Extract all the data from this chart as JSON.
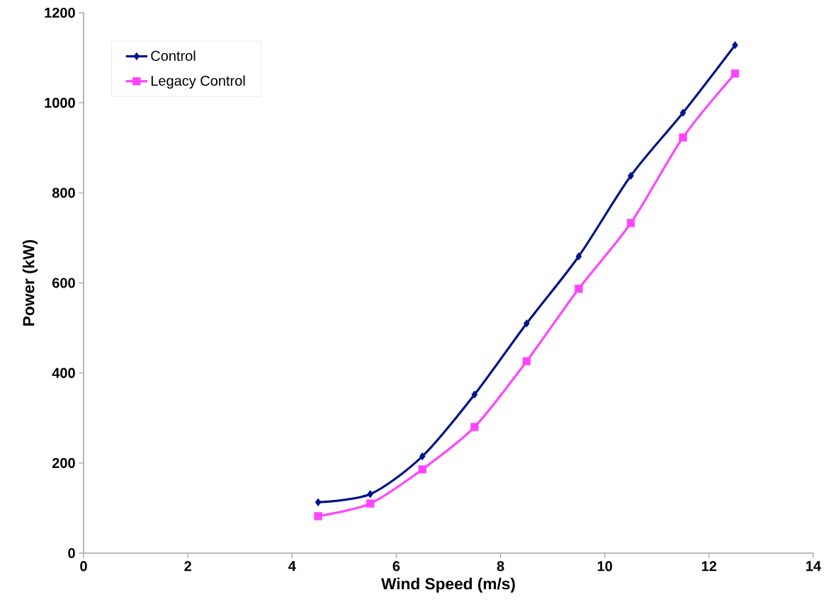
{
  "chart_data": {
    "type": "line",
    "xlabel": "Wind Speed (m/s)",
    "ylabel": "Power (kW)",
    "x": [
      4.5,
      5.5,
      6.5,
      7.5,
      8.5,
      9.5,
      10.5,
      11.5,
      12.5
    ],
    "series": [
      {
        "name": "Control",
        "color": "#001489",
        "marker": "diamond",
        "values": [
          113,
          131,
          215,
          352,
          510,
          659,
          838,
          978,
          1128
        ]
      },
      {
        "name": "Legacy Control",
        "color": "#ff44ff",
        "marker": "square",
        "values": [
          82,
          110,
          186,
          280,
          426,
          587,
          733,
          923,
          1065
        ]
      }
    ],
    "xlim": [
      0,
      14
    ],
    "xticks": [
      0,
      2,
      4,
      6,
      8,
      10,
      12,
      14
    ],
    "ylim": [
      0,
      1200
    ],
    "yticks": [
      0,
      200,
      400,
      600,
      800,
      1000,
      1200
    ],
    "legend": "top left",
    "grid": false,
    "line_style": "solid"
  }
}
